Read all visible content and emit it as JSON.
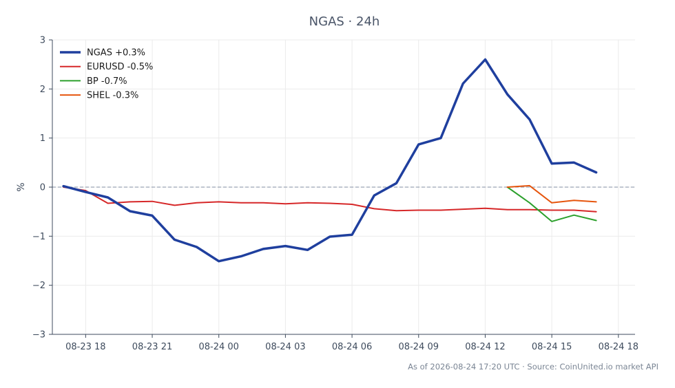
{
  "chart_data": {
    "type": "line",
    "title": "NGAS · 24h",
    "ylabel": "%",
    "xlabel": "",
    "ylim": [
      -3,
      3
    ],
    "yticks": [
      -3,
      -2,
      -1,
      0,
      1,
      2,
      3
    ],
    "ytick_labels": [
      "−3",
      "−2",
      "−1",
      "0",
      "1",
      "2",
      "3"
    ],
    "x_hours_range": [
      -0.5,
      25.75
    ],
    "xticks": [
      {
        "h": 1,
        "label": "08-23 18"
      },
      {
        "h": 4,
        "label": "08-23 21"
      },
      {
        "h": 7,
        "label": "08-24 00"
      },
      {
        "h": 10,
        "label": "08-24 03"
      },
      {
        "h": 13,
        "label": "08-24 06"
      },
      {
        "h": 16,
        "label": "08-24 09"
      },
      {
        "h": 19,
        "label": "08-24 12"
      },
      {
        "h": 22,
        "label": "08-24 15"
      },
      {
        "h": 25,
        "label": "08-24 18"
      }
    ],
    "grid": true,
    "zero_line": true,
    "legend_position": "top-left",
    "series": [
      {
        "name": "NGAS +0.3%",
        "color": "#1f3f9e",
        "width": 3.5,
        "x": [
          0,
          1,
          2,
          3,
          4,
          5,
          6,
          7,
          8,
          9,
          10,
          11,
          12,
          13,
          14,
          15,
          16,
          17,
          18,
          19,
          20,
          21,
          22,
          23,
          24
        ],
        "values": [
          0.02,
          -0.1,
          -0.21,
          -0.49,
          -0.58,
          -1.07,
          -1.22,
          -1.51,
          -1.41,
          -1.26,
          -1.2,
          -1.28,
          -1.01,
          -0.97,
          -0.17,
          0.08,
          0.87,
          1.0,
          2.11,
          2.6,
          1.89,
          1.38,
          0.48,
          0.5,
          0.3
        ]
      },
      {
        "name": "EURUSD -0.5%",
        "color": "#d62728",
        "width": 2,
        "x": [
          0,
          1,
          2,
          3,
          4,
          5,
          6,
          7,
          8,
          9,
          10,
          11,
          12,
          13,
          14,
          15,
          16,
          17,
          18,
          19,
          20,
          21,
          22,
          23,
          24
        ],
        "values": [
          0.0,
          -0.07,
          -0.33,
          -0.3,
          -0.29,
          -0.37,
          -0.32,
          -0.3,
          -0.32,
          -0.32,
          -0.34,
          -0.32,
          -0.33,
          -0.35,
          -0.44,
          -0.48,
          -0.47,
          -0.47,
          -0.45,
          -0.43,
          -0.46,
          -0.46,
          -0.47,
          -0.47,
          -0.5
        ]
      },
      {
        "name": "BP -0.7%",
        "color": "#2ca02c",
        "width": 2,
        "x": [
          20,
          21,
          22,
          23,
          24
        ],
        "values": [
          0.0,
          -0.32,
          -0.7,
          -0.57,
          -0.68
        ]
      },
      {
        "name": "SHEL -0.3%",
        "color": "#e6550d",
        "width": 2,
        "x": [
          20,
          21,
          22,
          23,
          24
        ],
        "values": [
          0.0,
          0.03,
          -0.32,
          -0.27,
          -0.3
        ]
      }
    ],
    "footer": "As of 2026-08-24 17:20 UTC · Source: CoinUnited.io market API"
  }
}
